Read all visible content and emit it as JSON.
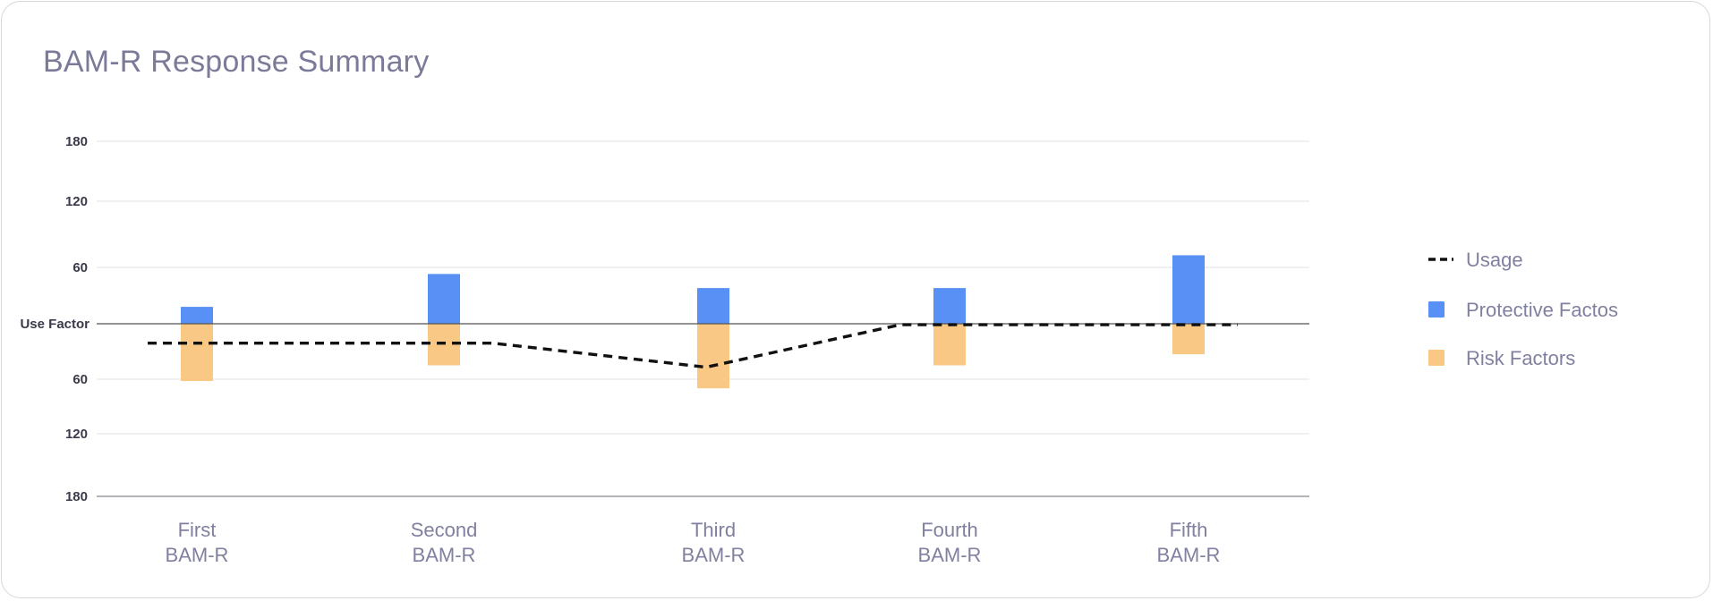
{
  "title": "BAM-R Response Summary",
  "colors": {
    "protective": "#5890f5",
    "risk": "#f8c884",
    "usage": "#111111",
    "grid": "#e6e6ea",
    "axis": "#555555"
  },
  "chart_data": {
    "type": "bar",
    "title": "BAM-R Response Summary",
    "categories": [
      [
        "First",
        "BAM-R"
      ],
      [
        "Second",
        "BAM-R"
      ],
      [
        "Third",
        "BAM-R"
      ],
      [
        "Fourth",
        "BAM-R"
      ],
      [
        "Fifth",
        "BAM-R"
      ]
    ],
    "baseline_label": "Use Factor",
    "y_ticks_upper": [
      60,
      120,
      180
    ],
    "y_ticks_lower": [
      60,
      120,
      180
    ],
    "ylim_upper": [
      0,
      180
    ],
    "ylim_lower": [
      0,
      180
    ],
    "grid": true,
    "legend_position": "right",
    "series": [
      {
        "name": "Protective Factos",
        "direction": "up",
        "values": [
          18,
          53,
          38,
          38,
          71
        ]
      },
      {
        "name": "Risk Factors",
        "direction": "down",
        "values": [
          62,
          45,
          70,
          45,
          33
        ]
      },
      {
        "name": "Usage",
        "type": "line",
        "style": "dashed",
        "direction": "down",
        "values": [
          21,
          21,
          47,
          1,
          1
        ]
      }
    ]
  },
  "legend": [
    {
      "label": "Usage",
      "kind": "dashed-line"
    },
    {
      "label": "Protective Factos",
      "kind": "square-protective"
    },
    {
      "label": "Risk Factors",
      "kind": "square-risk"
    }
  ]
}
